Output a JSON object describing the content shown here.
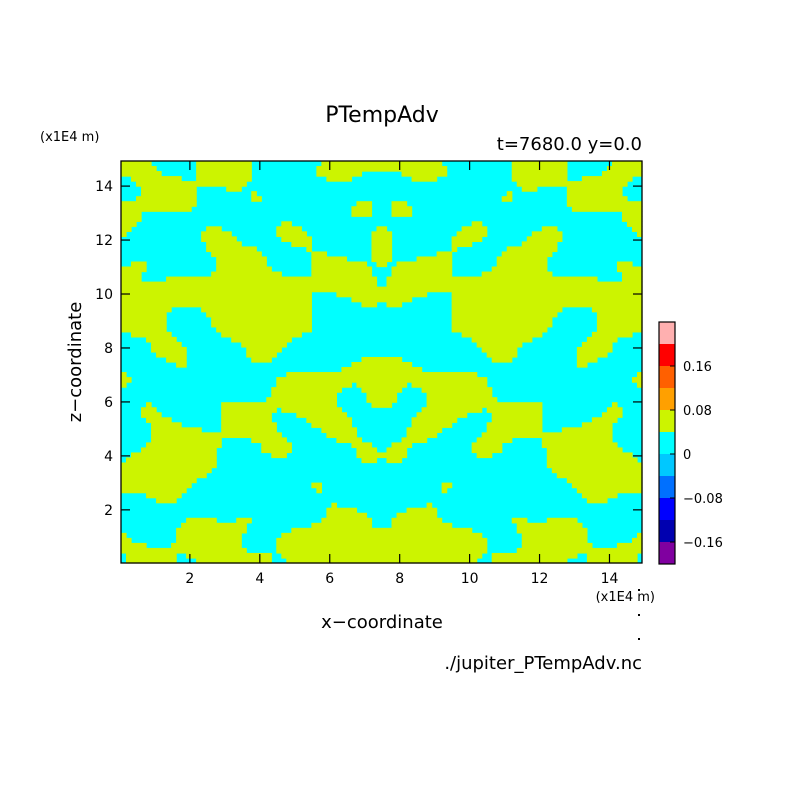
{
  "chart_data": {
    "type": "heatmap",
    "title": "PTempAdv",
    "subtitle": "t=7680.0 y=0.0",
    "xlabel": "x−coordinate",
    "ylabel": "z−coordinate",
    "x_unit": "(x1E4 m)",
    "y_unit": "(x1E4 m)",
    "source_file": "./jupiter_PTempAdv.nc",
    "xlim": [
      0.03,
      14.93
    ],
    "ylim": [
      0.03,
      14.93
    ],
    "x_ticks": [
      2,
      4,
      6,
      8,
      10,
      12,
      14
    ],
    "y_ticks": [
      2,
      4,
      6,
      8,
      10,
      12,
      14
    ],
    "field_levels": {
      "above_zero": 0.02,
      "below_zero": -0.02,
      "extreme_vertical": 0.1
    },
    "colorbar": {
      "tick_labels": [
        "0.16",
        "0.08",
        "0",
        "−0.08",
        "−0.16"
      ],
      "tick_values": [
        0.16,
        0.08,
        0,
        -0.08,
        -0.16
      ],
      "levels": [
        {
          "from": -0.2,
          "to": -0.16,
          "color": "#8000a0"
        },
        {
          "from": -0.16,
          "to": -0.12,
          "color": "#0000b0"
        },
        {
          "from": -0.12,
          "to": -0.08,
          "color": "#0000ff"
        },
        {
          "from": -0.08,
          "to": -0.04,
          "color": "#0070ff"
        },
        {
          "from": -0.04,
          "to": 0.0,
          "color": "#00c8ff"
        },
        {
          "from": 0.0,
          "to": 0.04,
          "color": "#00ffff"
        },
        {
          "from": 0.04,
          "to": 0.08,
          "color": "#ccf400"
        },
        {
          "from": 0.08,
          "to": 0.12,
          "color": "#ffa000"
        },
        {
          "from": 0.12,
          "to": 0.16,
          "color": "#ff6000"
        },
        {
          "from": 0.16,
          "to": 0.2,
          "color": "#ff0000"
        },
        {
          "from": 0.2,
          "to": 0.24,
          "color": "#ffb0b0"
        }
      ]
    },
    "colors": {
      "positive": "#ccf400",
      "negative": "#00ffff"
    },
    "grid": false,
    "legend": "right"
  }
}
